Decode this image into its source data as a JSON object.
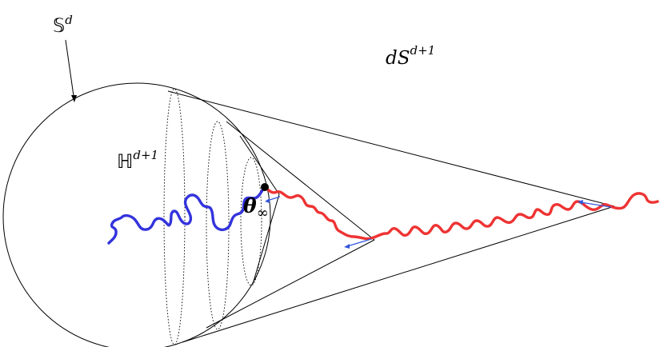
{
  "labels": {
    "sphere_bb": "𝕊",
    "sphere_sup": "d",
    "ds_main": "dS",
    "ds_sup": "d+1",
    "hyper_bb": "ℍ",
    "hyper_sup": "d+1",
    "theta_main": "θ",
    "theta_sub": "∞"
  },
  "colors": {
    "blue_path": "#3333dd",
    "red_path": "#ee3333",
    "arrow": "#3355dd",
    "lines": "#000000"
  }
}
